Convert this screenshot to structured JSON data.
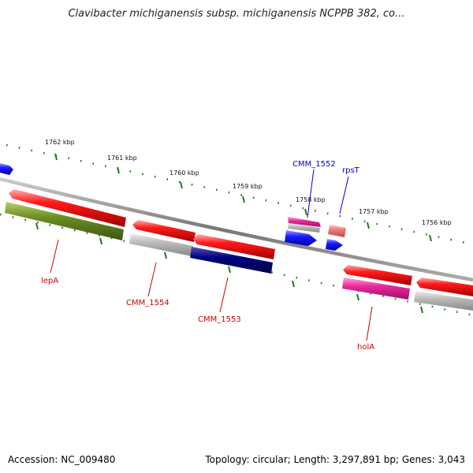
{
  "title": "Clavibacter michiganensis subsp. michiganensis NCPPB 382, co...",
  "footer": {
    "accession": "Accession: NC_009480",
    "summary": "Topology: circular; Length: 3,297,891 bp; Genes: 3,043"
  },
  "colors": {
    "backbone": "#888888",
    "tick": "#1e7a1e",
    "forward_label": "#0000cc",
    "reverse_label": "#cc0000",
    "red": "#ee1111",
    "olive": "#6b8e23",
    "gray": "#bbbbbb",
    "navy": "#000080",
    "blue": "#1a1aff",
    "magenta": "#e8299a",
    "salmon": "#f07b7b"
  },
  "kbp_labels": [
    "1762 kbp",
    "1761 kbp",
    "1760 kbp",
    "1759 kbp",
    "1758 kbp",
    "1757 kbp",
    "1756 kbp"
  ],
  "gene_labels": [
    {
      "text": "CMM_1552",
      "strand": "forward"
    },
    {
      "text": "rpsT",
      "strand": "forward"
    },
    {
      "text": "lepA",
      "strand": "reverse"
    },
    {
      "text": "CMM_1554",
      "strand": "reverse"
    },
    {
      "text": "CMM_1553",
      "strand": "reverse"
    },
    {
      "text": "holA",
      "strand": "reverse"
    }
  ]
}
